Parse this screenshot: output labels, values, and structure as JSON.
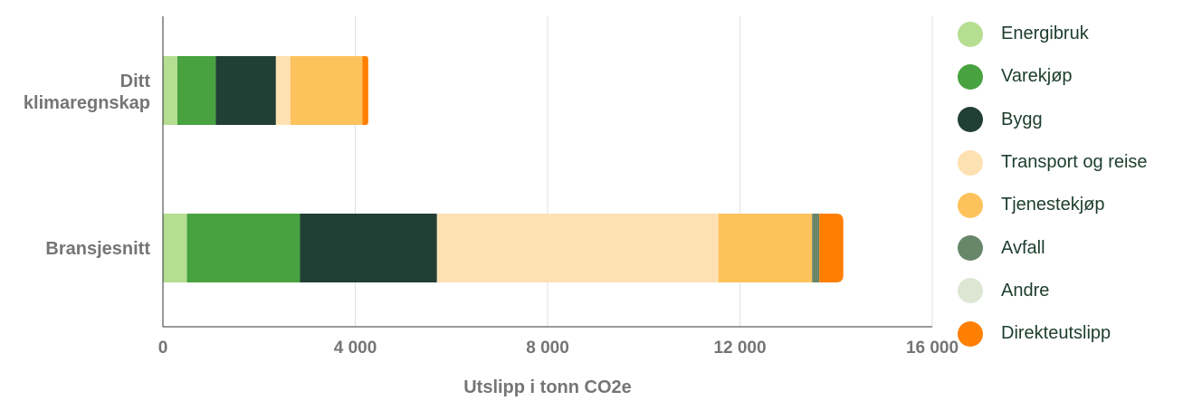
{
  "chart_data": {
    "type": "bar",
    "orientation": "horizontal",
    "stacked": true,
    "xlabel": "Utslipp i tonn CO2e",
    "ylabel": "",
    "xlim": [
      0,
      16000
    ],
    "x_ticks": [
      "0",
      "4 000",
      "8 000",
      "12 000",
      "16 000"
    ],
    "x_tick_values": [
      0,
      4000,
      8000,
      12000,
      16000
    ],
    "grid": "vertical",
    "legend_position": "right",
    "categories": [
      "Ditt klimaregnskap",
      "Bransjesnitt"
    ],
    "series": [
      {
        "name": "Energibruk",
        "color": "#b5de91",
        "values": [
          300,
          500
        ]
      },
      {
        "name": "Varekjøp",
        "color": "#47a23f",
        "values": [
          800,
          2350
        ]
      },
      {
        "name": "Bygg",
        "color": "#213f35",
        "values": [
          1250,
          2850
        ]
      },
      {
        "name": "Transport og reise",
        "color": "#fee1b2",
        "values": [
          300,
          5850
        ]
      },
      {
        "name": "Tjenestekjøp",
        "color": "#fec25d",
        "values": [
          1500,
          1950
        ]
      },
      {
        "name": "Avfall",
        "color": "#67866a",
        "values": [
          0,
          150
        ]
      },
      {
        "name": "Andre",
        "color": "#dde6d2",
        "values": [
          0,
          0
        ]
      },
      {
        "name": "Direkteutslipp",
        "color": "#ff7f01",
        "values": [
          120,
          500
        ]
      }
    ]
  }
}
